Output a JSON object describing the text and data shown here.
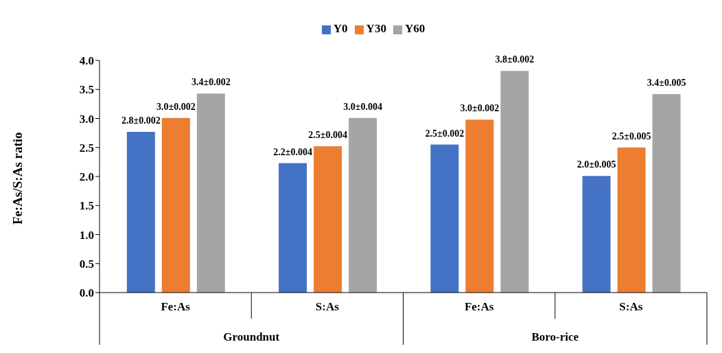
{
  "chart_data": {
    "type": "bar",
    "ylabel": "Fe:As/S:As ratio",
    "categories": [
      "Fe:As",
      "S:As",
      "Fe:As",
      "S:As"
    ],
    "series": [
      {
        "name": "Y0",
        "color": "#4472c4",
        "values": [
          2.77,
          2.23,
          2.55,
          2.01
        ],
        "value_labels": [
          "2.8±0.002",
          "2.2±0.004",
          "2.5±0.002",
          "2.0±0.005"
        ]
      },
      {
        "name": "Y30",
        "color": "#ed7d31",
        "values": [
          3.01,
          2.52,
          2.98,
          2.5
        ],
        "value_labels": [
          "3.0±0.002",
          "2.5±0.004",
          "3.0±0.002",
          "2.5±0.005"
        ]
      },
      {
        "name": "Y60",
        "color": "#a5a5a5",
        "values": [
          3.43,
          3.01,
          3.82,
          3.42
        ],
        "value_labels": [
          "3.4±0.002",
          "3.0±0.004",
          "3.8±0.002",
          "3.4±0.005"
        ]
      }
    ],
    "ylim": [
      0,
      4
    ],
    "yticks": [
      {
        "value": 0,
        "label": "0.0"
      },
      {
        "value": 0.5,
        "label": "0.5"
      },
      {
        "value": 1,
        "label": "1.0"
      },
      {
        "value": 1.5,
        "label": "1.5"
      },
      {
        "value": 2,
        "label": "2.0"
      },
      {
        "value": 2.5,
        "label": "2.5"
      },
      {
        "value": 3,
        "label": "3.0"
      },
      {
        "value": 3.5,
        "label": "3.5"
      },
      {
        "value": 4,
        "label": "4.0"
      }
    ],
    "annotations": [
      "Groundnut",
      "Boro-rice"
    ],
    "legend": "top",
    "grid": false
  }
}
